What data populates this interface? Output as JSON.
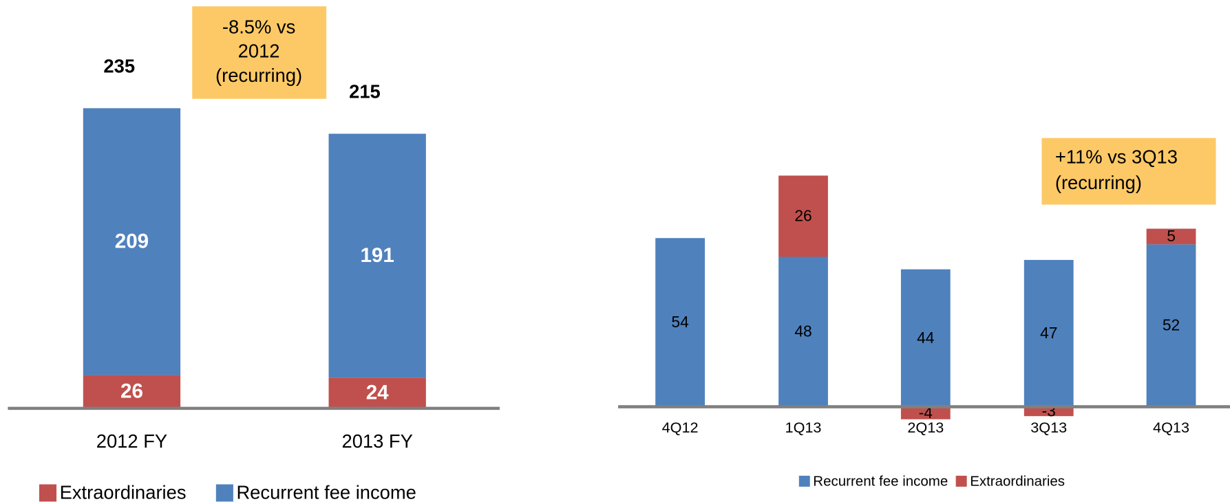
{
  "chart_data": [
    {
      "type": "bar",
      "stacked": true,
      "categories": [
        "2012 FY",
        "2013 FY"
      ],
      "series": [
        {
          "name": "Extraordinaries",
          "color": "#c0504d",
          "values": [
            26,
            24
          ]
        },
        {
          "name": "Recurrent fee income",
          "color": "#4f81bd",
          "values": [
            209,
            191
          ]
        }
      ],
      "total_labels": [
        235,
        215
      ],
      "annotation": [
        "-8.5% vs",
        "2012",
        "(recurring)"
      ]
    },
    {
      "type": "bar",
      "stacked": true,
      "categories": [
        "4Q12",
        "1Q13",
        "2Q13",
        "3Q13",
        "4Q13"
      ],
      "series": [
        {
          "name": "Recurrent fee income",
          "color": "#4f81bd",
          "values": [
            54,
            48,
            44,
            47,
            52
          ]
        },
        {
          "name": "Extraordinaries",
          "color": "#c0504d",
          "values": [
            null,
            26,
            -4,
            -3,
            5
          ]
        }
      ],
      "annotation": [
        "+11% vs 3Q13",
        "(recurring)"
      ]
    }
  ]
}
